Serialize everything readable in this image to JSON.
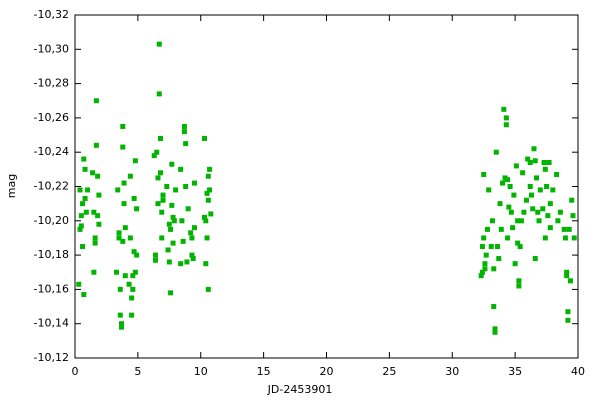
{
  "chart_data": {
    "type": "scatter",
    "x_label": "JD-2453901",
    "y_label": "mag",
    "color": "#00b400",
    "xlim": [
      0,
      40
    ],
    "xticks": [
      0,
      5,
      10,
      15,
      20,
      25,
      30,
      35,
      40
    ],
    "ylim": [
      -10.12,
      -10.32
    ],
    "yticks": [
      {
        "value": -10.12,
        "label": "-10,12"
      },
      {
        "value": -10.14,
        "label": "-10,14"
      },
      {
        "value": -10.16,
        "label": "-10,16"
      },
      {
        "value": -10.18,
        "label": "-10,18"
      },
      {
        "value": -10.2,
        "label": "-10,20"
      },
      {
        "value": -10.22,
        "label": "-10,22"
      },
      {
        "value": -10.24,
        "label": "-10,24"
      },
      {
        "value": -10.26,
        "label": "-10,26"
      },
      {
        "value": -10.28,
        "label": "-10,28"
      },
      {
        "value": -10.3,
        "label": "-10,30"
      },
      {
        "value": -10.32,
        "label": "-10,32"
      }
    ],
    "x": [
      0.3,
      0.4,
      0.4,
      0.5,
      0.5,
      0.6,
      0.6,
      0.7,
      0.7,
      0.8,
      0.8,
      0.9,
      1.0,
      1.4,
      1.5,
      1.5,
      1.6,
      1.6,
      1.7,
      1.7,
      1.8,
      1.8,
      1.9,
      1.9,
      3.3,
      3.4,
      3.5,
      3.5,
      3.6,
      3.6,
      3.7,
      3.7,
      3.8,
      3.8,
      3.9,
      3.9,
      3.8,
      4.0,
      4.0,
      4.3,
      4.4,
      4.4,
      4.5,
      4.5,
      4.6,
      4.6,
      4.7,
      4.7,
      4.8,
      4.8,
      4.9,
      4.9,
      6.3,
      6.4,
      6.4,
      6.5,
      6.6,
      6.6,
      6.7,
      6.7,
      6.8,
      6.8,
      6.9,
      6.9,
      7.0,
      7.0,
      7.3,
      7.4,
      7.5,
      7.5,
      7.6,
      7.6,
      7.7,
      7.7,
      7.8,
      7.8,
      7.9,
      8.0,
      8.4,
      8.4,
      8.5,
      8.6,
      8.7,
      8.7,
      8.8,
      8.8,
      8.9,
      9.0,
      9.2,
      9.3,
      9.3,
      9.4,
      9.5,
      9.5,
      10.3,
      10.3,
      10.4,
      10.4,
      10.5,
      10.5,
      10.6,
      10.6,
      10.6,
      10.7,
      10.7,
      10.8,
      32.3,
      32.4,
      32.4,
      32.5,
      32.5,
      32.6,
      32.6,
      32.7,
      32.8,
      32.9,
      33.1,
      33.2,
      33.3,
      33.3,
      33.4,
      33.4,
      33.5,
      33.6,
      33.7,
      33.8,
      33.9,
      34.0,
      34.1,
      34.2,
      34.3,
      34.3,
      34.4,
      34.4,
      34.5,
      34.6,
      34.7,
      34.8,
      34.9,
      35.0,
      35.1,
      35.2,
      35.2,
      35.3,
      35.3,
      35.4,
      35.5,
      35.6,
      35.7,
      35.9,
      36.0,
      36.2,
      36.2,
      36.3,
      36.4,
      36.5,
      36.6,
      36.6,
      36.7,
      36.8,
      36.9,
      37.0,
      37.2,
      37.3,
      37.4,
      37.4,
      37.5,
      37.6,
      37.7,
      37.8,
      37.8,
      38.0,
      38.3,
      38.4,
      38.6,
      38.9,
      39.0,
      39.1,
      39.1,
      39.2,
      39.2,
      39.3,
      39.4,
      39.5,
      39.6,
      39.7
    ],
    "values": [
      -10.163,
      -10.218,
      -10.195,
      -10.197,
      -10.203,
      -10.185,
      -10.21,
      -10.236,
      -10.157,
      -10.213,
      -10.23,
      -10.205,
      -10.218,
      -10.228,
      -10.205,
      -10.17,
      -10.19,
      -10.187,
      -10.27,
      -10.244,
      -10.226,
      -10.203,
      -10.198,
      -10.215,
      -10.17,
      -10.218,
      -10.193,
      -10.19,
      -10.16,
      -10.145,
      -10.14,
      -10.138,
      -10.255,
      -10.243,
      -10.222,
      -10.21,
      -10.188,
      -10.196,
      -10.168,
      -10.163,
      -10.19,
      -10.226,
      -10.155,
      -10.145,
      -10.168,
      -10.16,
      -10.182,
      -10.213,
      -10.235,
      -10.17,
      -10.207,
      -10.18,
      -10.238,
      -10.18,
      -10.177,
      -10.24,
      -10.21,
      -10.225,
      -10.303,
      -10.274,
      -10.248,
      -10.228,
      -10.205,
      -10.19,
      -10.215,
      -10.212,
      -10.22,
      -10.183,
      -10.198,
      -10.176,
      -10.158,
      -10.195,
      -10.233,
      -10.209,
      -10.202,
      -10.187,
      -10.2,
      -10.218,
      -10.175,
      -10.23,
      -10.2,
      -10.188,
      -10.255,
      -10.252,
      -10.245,
      -10.22,
      -10.176,
      -10.207,
      -10.193,
      -10.19,
      -10.18,
      -10.178,
      -10.196,
      -10.222,
      -10.248,
      -10.202,
      -10.2,
      -10.175,
      -10.216,
      -10.19,
      -10.212,
      -10.226,
      -10.16,
      -10.23,
      -10.218,
      -10.204,
      -10.168,
      -10.17,
      -10.185,
      -10.19,
      -10.227,
      -10.175,
      -10.172,
      -10.18,
      -10.195,
      -10.218,
      -10.185,
      -10.2,
      -10.172,
      -10.15,
      -10.137,
      -10.135,
      -10.24,
      -10.185,
      -10.178,
      -10.21,
      -10.195,
      -10.222,
      -10.265,
      -10.225,
      -10.26,
      -10.256,
      -10.224,
      -10.19,
      -10.208,
      -10.22,
      -10.205,
      -10.196,
      -10.215,
      -10.175,
      -10.232,
      -10.2,
      -10.187,
      -10.165,
      -10.162,
      -10.185,
      -10.2,
      -10.228,
      -10.205,
      -10.212,
      -10.236,
      -10.22,
      -10.234,
      -10.215,
      -10.207,
      -10.242,
      -10.178,
      -10.235,
      -10.225,
      -10.205,
      -10.2,
      -10.218,
      -10.207,
      -10.234,
      -10.19,
      -10.23,
      -10.22,
      -10.203,
      -10.234,
      -10.196,
      -10.21,
      -10.218,
      -10.227,
      -10.2,
      -10.205,
      -10.195,
      -10.19,
      -10.17,
      -10.168,
      -10.147,
      -10.142,
      -10.195,
      -10.165,
      -10.212,
      -10.203,
      -10.19
    ]
  }
}
